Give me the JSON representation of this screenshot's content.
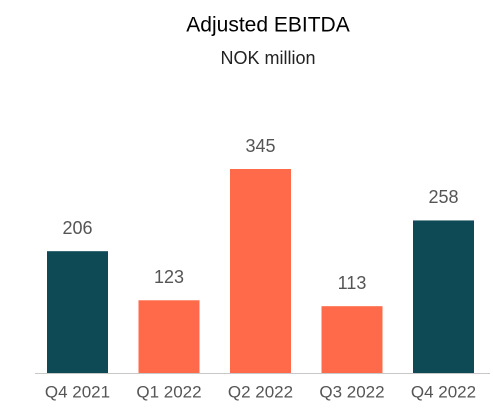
{
  "chart_data": {
    "type": "bar",
    "title": "Adjusted EBITDA",
    "subtitle": "NOK million",
    "categories": [
      "Q4 2021",
      "Q1 2022",
      "Q2 2022",
      "Q3 2022",
      "Q4 2022"
    ],
    "values": [
      206,
      123,
      345,
      113,
      258
    ],
    "colors": [
      "#0d4a55",
      "#ff6b4a",
      "#ff6b4a",
      "#ff6b4a",
      "#0d4a55"
    ]
  }
}
